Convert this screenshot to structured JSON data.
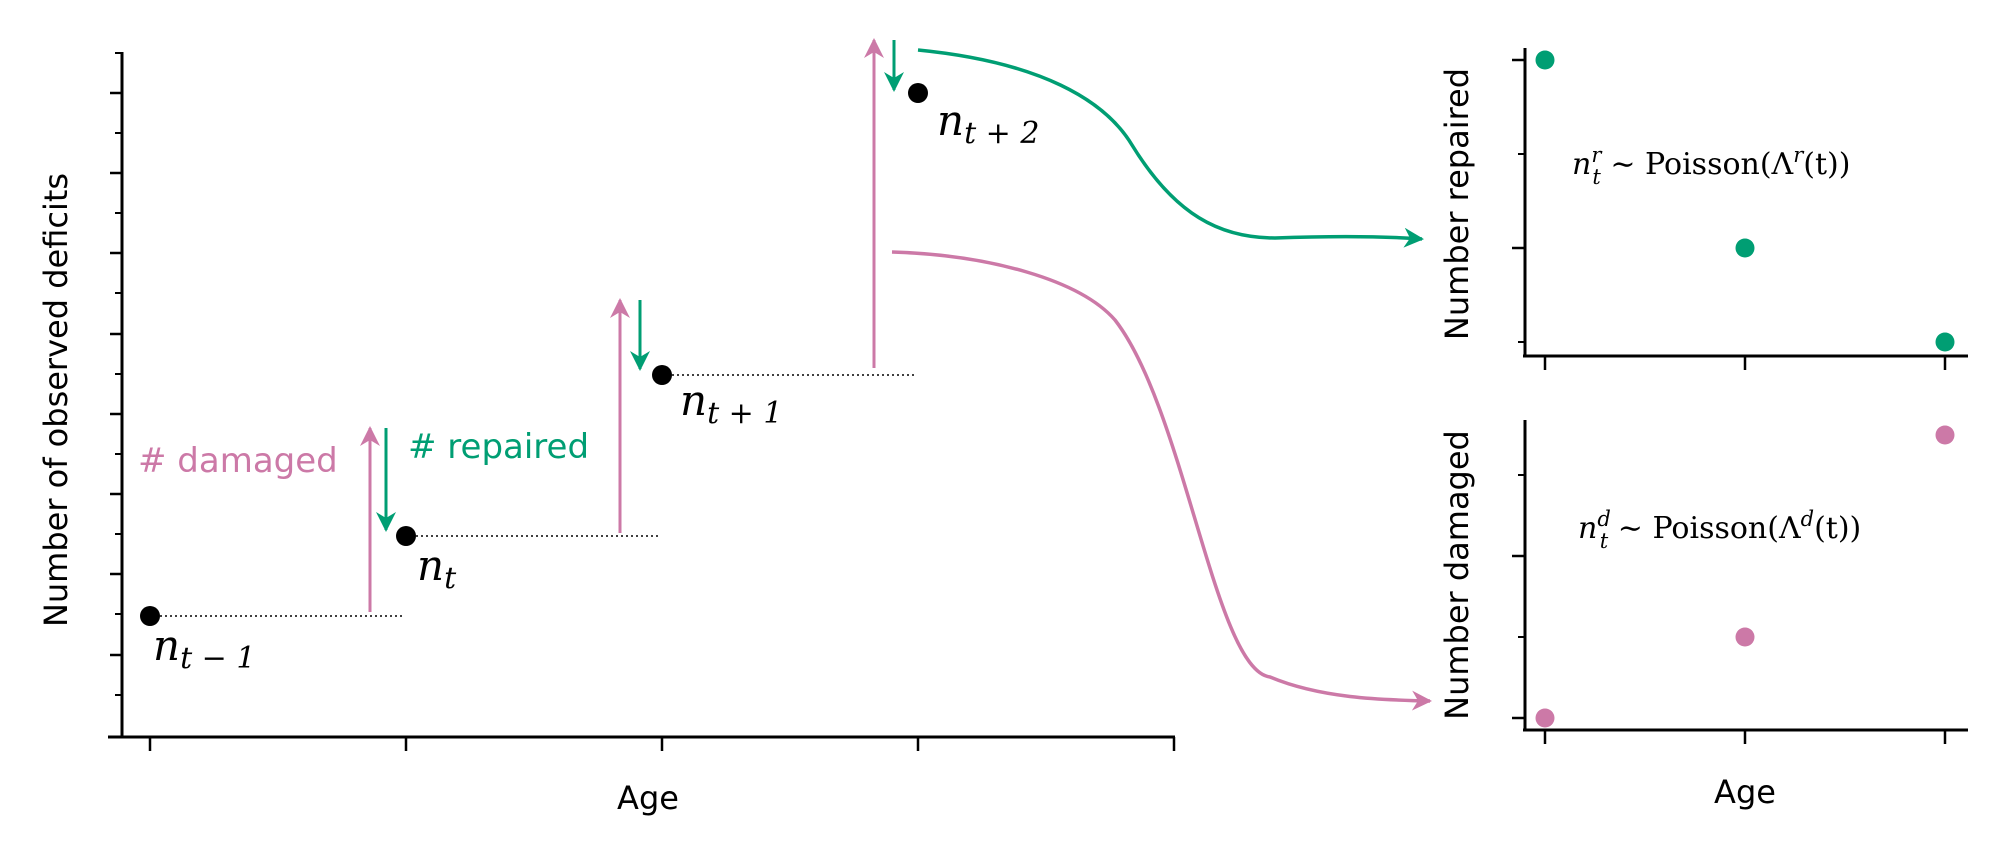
{
  "colors": {
    "damage": "#CC79A7",
    "repair": "#009E73",
    "point": "#000000",
    "axis": "#000000"
  },
  "main_panel": {
    "ylabel": "Number of observed deficits",
    "xlabel": "Age",
    "points": [
      {
        "n": "n",
        "sub": "t − 1"
      },
      {
        "n": "n",
        "sub": "t"
      },
      {
        "n": "n",
        "sub": "t + 1"
      },
      {
        "n": "n",
        "sub": "t + 2"
      }
    ],
    "damaged_label": "# damaged",
    "repaired_label": "# repaired"
  },
  "repair_panel": {
    "ylabel": "Number repaired",
    "equation": {
      "var": "n",
      "sup": "r",
      "sub": "t",
      "tilde": " ∼ ",
      "dist": "Poisson(Λ",
      "lsup": "r",
      "arg": "(t))"
    }
  },
  "damage_panel": {
    "ylabel": "Number damaged",
    "xlabel": "Age",
    "equation": {
      "var": "n",
      "sup": "d",
      "sub": "t",
      "tilde": " ∼ ",
      "dist": "Poisson(Λ",
      "lsup": "d",
      "arg": "(t))"
    }
  }
}
